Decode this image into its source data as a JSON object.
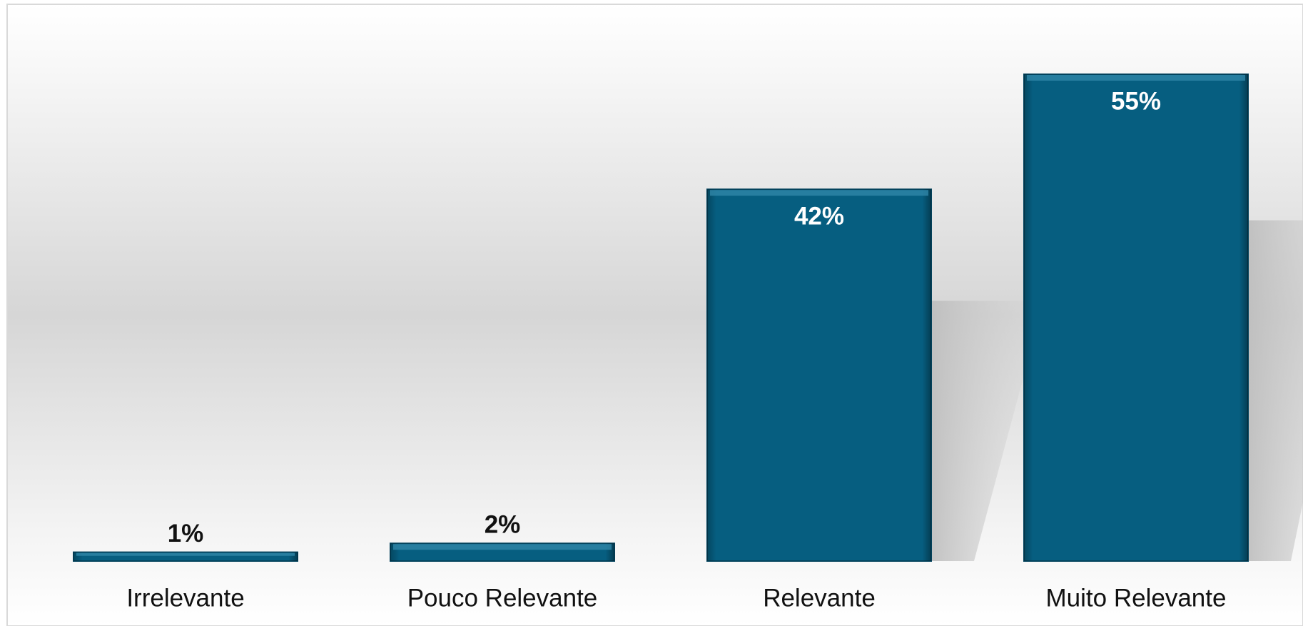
{
  "chart_data": {
    "type": "bar",
    "categories": [
      "Irrelevante",
      "Pouco Relevante",
      "Relevante",
      "Muito Relevante"
    ],
    "values": [
      1,
      2,
      42,
      55
    ],
    "value_labels": [
      "1%",
      "2%",
      "42%",
      "55%"
    ],
    "color": "#065e80"
  }
}
